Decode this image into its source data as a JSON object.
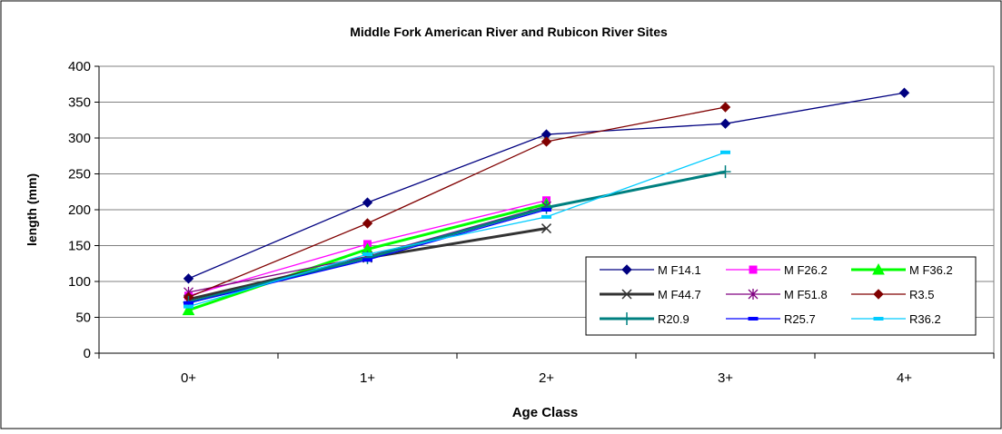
{
  "chart_data": {
    "type": "line",
    "title": "Middle Fork American River and Rubicon River Sites",
    "xlabel": "Age Class",
    "ylabel": "length (mm)",
    "categories": [
      "0+",
      "1+",
      "2+",
      "3+",
      "4+"
    ],
    "ylim": [
      0,
      400
    ],
    "yticks": [
      0,
      50,
      100,
      150,
      200,
      250,
      300,
      350,
      400
    ],
    "grid": "horizontal",
    "legend_position": "bottom-right",
    "series": [
      {
        "name": "M F14.1",
        "color": "#000080",
        "marker": "diamond",
        "values": [
          104,
          210,
          305,
          320,
          363
        ]
      },
      {
        "name": "M F26.2",
        "color": "#ff00ff",
        "marker": "square",
        "values": [
          80,
          152,
          213,
          null,
          null
        ]
      },
      {
        "name": "M F36.2",
        "color": "#00ff00",
        "marker": "triangle",
        "values": [
          60,
          145,
          208,
          null,
          null
        ]
      },
      {
        "name": "M F44.7",
        "color": "#333333",
        "marker": "x",
        "values": [
          75,
          133,
          174,
          null,
          null
        ]
      },
      {
        "name": "M F51.8",
        "color": "#800080",
        "marker": "asterisk",
        "values": [
          85,
          135,
          205,
          null,
          null
        ]
      },
      {
        "name": "R3.5",
        "color": "#800000",
        "marker": "diamond",
        "values": [
          78,
          181,
          295,
          343,
          null
        ]
      },
      {
        "name": "R20.9",
        "color": "#008080",
        "marker": "plus",
        "values": [
          71,
          133,
          203,
          253,
          null
        ]
      },
      {
        "name": "R25.7",
        "color": "#0000ff",
        "marker": "dash",
        "values": [
          70,
          130,
          200,
          null,
          null
        ]
      },
      {
        "name": "R36.2",
        "color": "#00ccff",
        "marker": "dash",
        "values": [
          65,
          138,
          190,
          280,
          null
        ]
      }
    ]
  }
}
